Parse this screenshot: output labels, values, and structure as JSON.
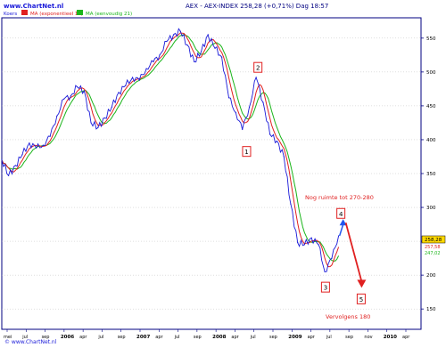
{
  "header": {
    "watermark_top": "www.ChartNet.nl",
    "legend_slot": "Koers",
    "legend_ma10": "MA (exponentieel 10)",
    "legend_ma21": "MA (eenvoudig 21)",
    "title": "AEX - AEX-INDEX   258,28 (+0,71%)   Dag 18:57",
    "watermark_bottom": "© www.ChartNet.nl"
  },
  "colors": {
    "price": "#1a1ad9",
    "ma10": "#e02020",
    "ma21": "#1bb51b",
    "annotation": "#e02020",
    "arrow_up": "#2255ee",
    "axis": "#000080",
    "grid": "#bfbfbf",
    "last_price_box": "#ffd900"
  },
  "annotations": {
    "wave_labels": [
      "1",
      "2",
      "3",
      "4",
      "5"
    ],
    "note_top": "Nog ruimte tot 270-280",
    "note_bottom": "Vervolgens 180"
  },
  "last_values": {
    "price": "258,28",
    "ma10": "257,58",
    "ma21": "247,02"
  },
  "chart_data": {
    "type": "line",
    "title": "AEX - AEX-INDEX",
    "ylim": [
      120,
      580
    ],
    "yticks": [
      150,
      200,
      250,
      300,
      350,
      400,
      450,
      500,
      550
    ],
    "x_tick_labels": [
      "mei",
      "jul",
      "sep",
      "2006",
      "apr",
      "jul",
      "sep",
      "2007",
      "apr",
      "jul",
      "sep",
      "2008",
      "apr",
      "jul",
      "sep",
      "2009",
      "apr",
      "jul",
      "sep",
      "nov",
      "2010",
      "apr"
    ],
    "x_range": [
      "2005-04-01",
      "2010-05-01"
    ],
    "series": [
      {
        "name": "Koers",
        "x": [
          "2005-04-01",
          "2005-05-01",
          "2005-06-01",
          "2005-07-01",
          "2005-08-01",
          "2005-09-01",
          "2005-10-01",
          "2005-11-01",
          "2005-12-01",
          "2006-01-01",
          "2006-02-01",
          "2006-03-01",
          "2006-04-01",
          "2006-05-01",
          "2006-06-01",
          "2006-07-01",
          "2006-08-01",
          "2006-09-01",
          "2006-10-01",
          "2006-11-01",
          "2006-12-01",
          "2007-01-01",
          "2007-02-01",
          "2007-03-01",
          "2007-04-01",
          "2007-05-01",
          "2007-06-01",
          "2007-07-01",
          "2007-08-01",
          "2007-09-01",
          "2007-10-01",
          "2007-11-01",
          "2007-12-01",
          "2008-01-01",
          "2008-02-01",
          "2008-03-01",
          "2008-04-01",
          "2008-05-01",
          "2008-06-01",
          "2008-07-01",
          "2008-08-01",
          "2008-09-01",
          "2008-10-01",
          "2008-11-01",
          "2008-12-01",
          "2009-01-01",
          "2009-02-01",
          "2009-03-01",
          "2009-04-01",
          "2009-05-01"
        ],
        "values": [
          370,
          347,
          362,
          378,
          395,
          388,
          392,
          405,
          435,
          460,
          465,
          478,
          472,
          425,
          418,
          432,
          448,
          470,
          480,
          492,
          488,
          505,
          515,
          525,
          545,
          555,
          560,
          540,
          515,
          530,
          555,
          535,
          522,
          462,
          440,
          415,
          448,
          492,
          455,
          408,
          398,
          375,
          305,
          248,
          245,
          255,
          245,
          205,
          225,
          258
        ]
      }
    ],
    "wave_points": [
      {
        "label": "1",
        "date": "2008-03-10",
        "value": 403
      },
      {
        "label": "2",
        "date": "2008-05-15",
        "value": 493
      },
      {
        "label": "3",
        "date": "2009-03-06",
        "value": 200
      },
      {
        "label": "4",
        "date": "2009-05-25",
        "value": 280
      },
      {
        "label": "5",
        "date": "2009-08-15",
        "value": 180
      }
    ]
  }
}
